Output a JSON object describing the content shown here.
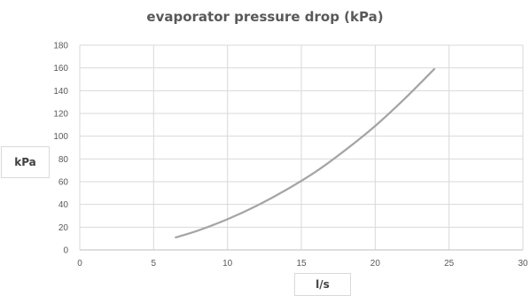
{
  "chart_data": {
    "type": "line",
    "title": "evaporator pressure drop (kPa)",
    "xlabel": "l/s",
    "ylabel": "kPa",
    "xlim": [
      0,
      30
    ],
    "ylim": [
      0,
      180
    ],
    "x_ticks": [
      "0",
      "5",
      "10",
      "15",
      "20",
      "25",
      "30"
    ],
    "y_ticks": [
      "0",
      "20",
      "40",
      "60",
      "80",
      "100",
      "120",
      "140",
      "160",
      "180"
    ],
    "grid": true,
    "legend": "none",
    "series": [
      {
        "color": "#a5a5a5",
        "x": [
          6.5,
          8,
          10,
          12,
          14,
          16,
          18,
          20,
          22,
          24
        ],
        "y": [
          11,
          17,
          27,
          39,
          53,
          69,
          88,
          109,
          133,
          159
        ]
      }
    ]
  }
}
